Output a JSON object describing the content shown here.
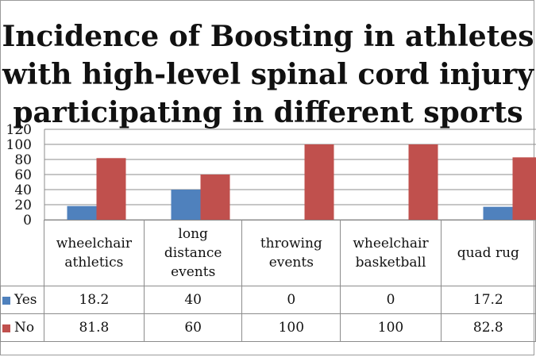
{
  "chart_data": {
    "type": "bar",
    "title": "Incidence of Boosting in athletes with high-level spinal cord injury participating in different sports",
    "title_lines": [
      "Incidence of Boosting in athletes",
      "with high-level spinal cord injury",
      "participating in different sports"
    ],
    "categories": [
      "wheelchair athletics",
      "long distance events",
      "throwing events",
      "wheelchair basketball",
      "quad rugby"
    ],
    "category_display": [
      "wheelchair\nathletics",
      "long\ndistance\nevents",
      "throwing\nevents",
      "wheelchair\nbasketball",
      "quad rug"
    ],
    "series": [
      {
        "name": "Yes",
        "color": "#4f81bd",
        "values": [
          18.2,
          40,
          0,
          0,
          17.2
        ],
        "value_labels": [
          "18.2",
          "40",
          "0",
          "0",
          "17.2"
        ]
      },
      {
        "name": "No",
        "color": "#c0504d",
        "values": [
          81.8,
          60,
          100,
          100,
          82.8
        ],
        "value_labels": [
          "81.8",
          "60",
          "100",
          "100",
          "82.8"
        ]
      }
    ],
    "ylim": [
      0,
      120
    ],
    "yticks": [
      "0",
      "20",
      "40",
      "60",
      "80",
      "100",
      "120"
    ],
    "grid": true,
    "legend": "data-table"
  }
}
